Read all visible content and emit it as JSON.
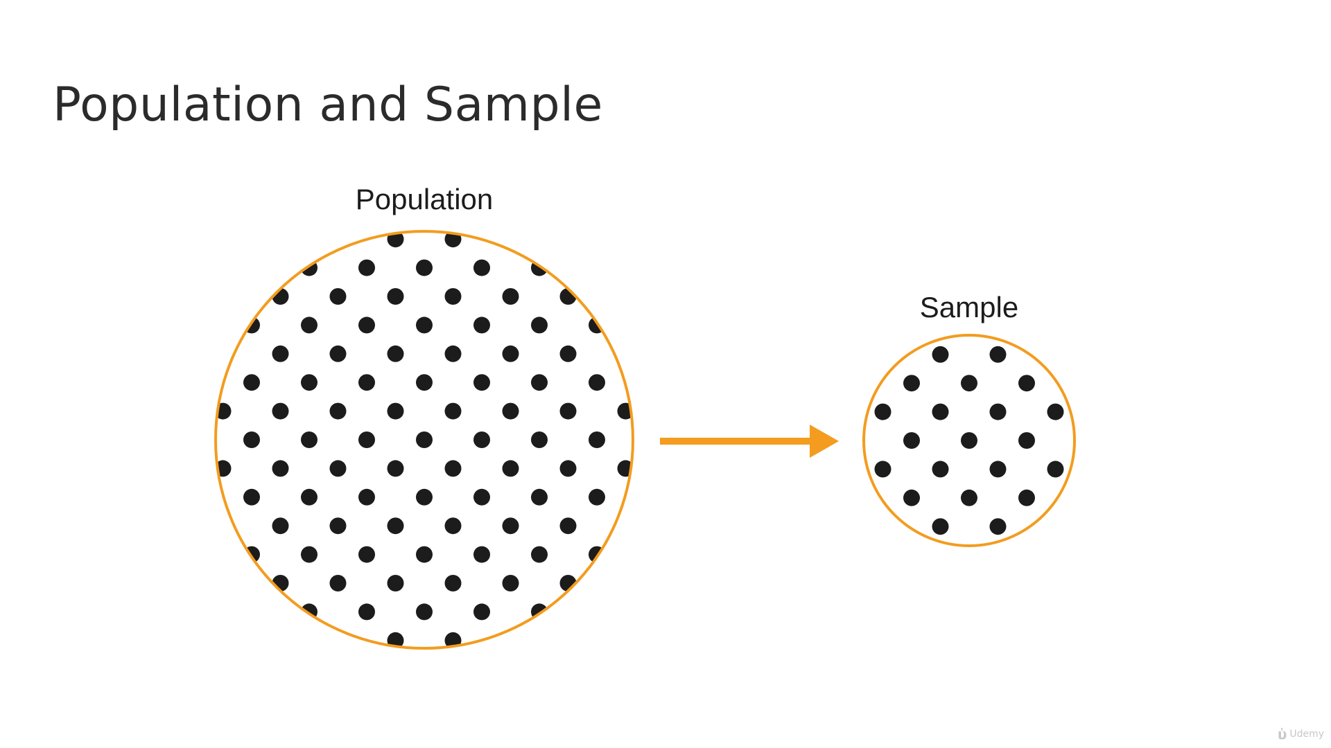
{
  "slide": {
    "title": "Population and Sample"
  },
  "diagram": {
    "population_label": "Population",
    "sample_label": "Sample",
    "colors": {
      "ring": "#f39c1f",
      "arrow": "#f39c1f",
      "dot": "#1c1c1c"
    }
  },
  "watermark": {
    "text": "Udemy",
    "icon": "udemy-logo-icon"
  }
}
